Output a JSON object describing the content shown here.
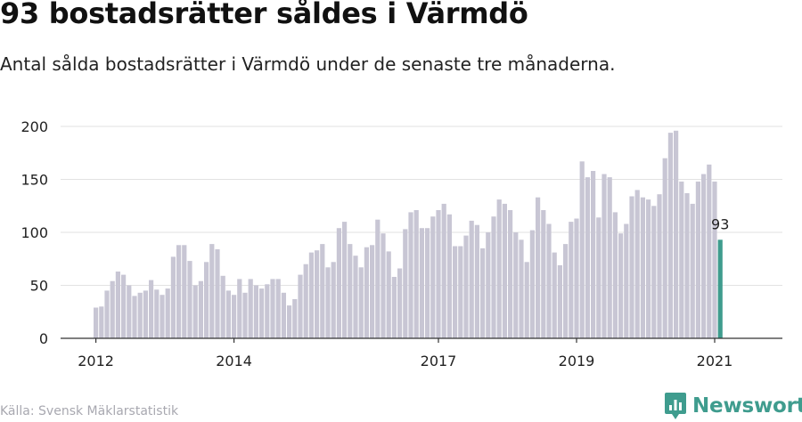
{
  "header": {
    "title": "93 bostadsrätter såldes i Värmdö",
    "subtitle": "Antal sålda bostadsrätter i Värmdö under de senaste tre månaderna."
  },
  "footer": {
    "source": "Källa: Svensk Mäklarstatistik",
    "brand": "Newsworthy",
    "brand_color": "#3f9c8e"
  },
  "chart_data": {
    "type": "bar",
    "title": "",
    "xlabel": "",
    "ylabel": "",
    "ylim": [
      0,
      200
    ],
    "yticks": [
      0,
      50,
      100,
      150,
      200
    ],
    "x_tick_labels": [
      {
        "label": "2012",
        "bar_index": 0
      },
      {
        "label": "2014",
        "bar_index": 25
      },
      {
        "label": "2017",
        "bar_index": 62
      },
      {
        "label": "2019",
        "bar_index": 87
      },
      {
        "label": "2021",
        "bar_index": 112
      }
    ],
    "bar_color": "#c8c6d4",
    "highlight_color": "#3f9c8e",
    "highlight_label": "93",
    "grid": true,
    "values": [
      29,
      30,
      45,
      54,
      63,
      60,
      50,
      40,
      43,
      45,
      55,
      46,
      41,
      47,
      77,
      88,
      88,
      73,
      50,
      54,
      72,
      89,
      84,
      59,
      45,
      41,
      56,
      43,
      56,
      50,
      47,
      51,
      56,
      56,
      43,
      31,
      37,
      60,
      70,
      81,
      83,
      89,
      67,
      72,
      104,
      110,
      89,
      78,
      67,
      86,
      88,
      112,
      99,
      82,
      58,
      66,
      103,
      119,
      121,
      104,
      104,
      115,
      121,
      127,
      117,
      87,
      87,
      97,
      111,
      107,
      85,
      100,
      115,
      131,
      127,
      121,
      100,
      93,
      72,
      102,
      133,
      121,
      108,
      81,
      69,
      89,
      110,
      113,
      167,
      152,
      158,
      114,
      155,
      152,
      119,
      99,
      108,
      134,
      140,
      133,
      131,
      125,
      136,
      170,
      194,
      196,
      148,
      137,
      127,
      148,
      155,
      164,
      148,
      93
    ]
  }
}
